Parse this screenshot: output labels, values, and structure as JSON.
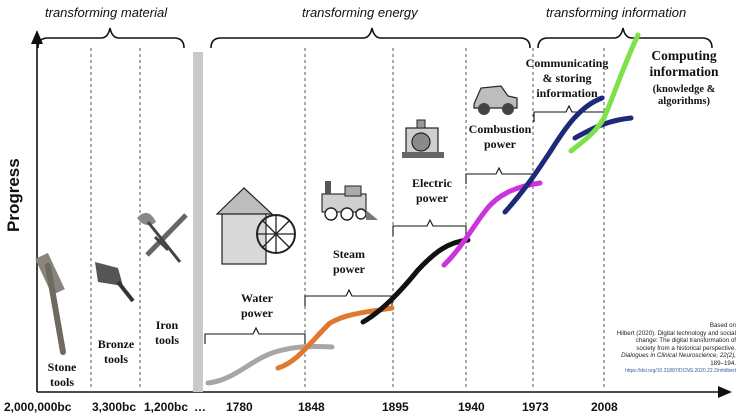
{
  "axis": {
    "y_label": "Progress",
    "x_ticks": [
      "2,000,000bc",
      "3,300bc",
      "1,200bc",
      "…",
      "1780",
      "1848",
      "1895",
      "1940",
      "1973",
      "2008"
    ]
  },
  "eras": {
    "material": "transforming material",
    "energy": "transforming energy",
    "information": "transforming information"
  },
  "stages": {
    "stone": [
      "Stone",
      "tools"
    ],
    "bronze": [
      "Bronze",
      "tools"
    ],
    "iron": [
      "Iron",
      "tools"
    ],
    "water": [
      "Water",
      "power"
    ],
    "steam": [
      "Steam",
      "power"
    ],
    "electric": [
      "Electric",
      "power"
    ],
    "combustion": [
      "Combustion",
      "power"
    ],
    "communicating": [
      "Communicating",
      "& storing",
      "information"
    ],
    "computing": [
      "Computing",
      "information"
    ],
    "computing_sub": [
      "(knowledge &",
      "algorithms)"
    ]
  },
  "citation": {
    "line1": "Based on",
    "line2": "Hilbert (2020). Digital technology and social",
    "line3": "change: The digital transformation of",
    "line4": "society from a historical perspective.",
    "line5": "Dialogues in Clinical Neuroscience, 22(2),",
    "line6": "189–194.",
    "doi": "https://doi.org/10.31887/DCNS.2020.22.2/mhilbert"
  },
  "colors": {
    "water_curve": "#a6a6a6",
    "steam_curve": "#e0782e",
    "electric_curve": "#111111",
    "combustion_curve": "#cc33dd",
    "communicating_curve": "#1e2a78",
    "computing_curve": "#7ee04a"
  }
}
